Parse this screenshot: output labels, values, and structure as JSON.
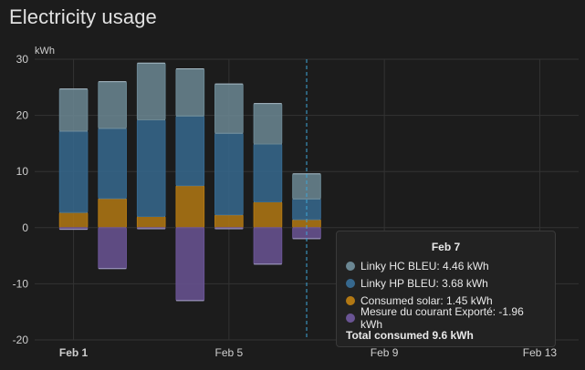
{
  "card": {
    "title": "Electricity usage"
  },
  "chart_data": {
    "type": "bar",
    "stacked": true,
    "unit_label": "kWh",
    "ylim": [
      -20,
      30
    ],
    "yticks": [
      30,
      20,
      10,
      0,
      -10,
      -20
    ],
    "xlim": [
      "Jan 31",
      "Feb 14"
    ],
    "xticks": [
      {
        "date": "Feb 1",
        "bold": true
      },
      {
        "date": "Feb 5",
        "bold": false
      },
      {
        "date": "Feb 9",
        "bold": false
      },
      {
        "date": "Feb 13",
        "bold": false
      }
    ],
    "dates": [
      "Feb 1",
      "Feb 2",
      "Feb 3",
      "Feb 4",
      "Feb 5",
      "Feb 6",
      "Feb 7"
    ],
    "series": [
      {
        "name": "Consumed solar",
        "color": "#b27813",
        "values": [
          2.7,
          5.2,
          2.0,
          7.5,
          2.3,
          4.6,
          1.45
        ]
      },
      {
        "name": "Linky HP BLEU",
        "color": "#36688e",
        "values": [
          14.5,
          12.5,
          17.2,
          12.4,
          14.5,
          10.3,
          3.68
        ]
      },
      {
        "name": "Linky HC BLEU",
        "color": "#6b8793",
        "values": [
          7.5,
          8.3,
          10.1,
          8.4,
          8.8,
          7.2,
          4.46
        ]
      },
      {
        "name": "Mesure du courant Exporté",
        "color": "#6a5494",
        "values": [
          -0.3,
          -7.3,
          -0.2,
          -13.0,
          -0.2,
          -6.5,
          -1.96
        ]
      }
    ],
    "grid": true,
    "hover_date": "Feb 7"
  },
  "tooltip": {
    "title": "Feb 7",
    "rows": [
      {
        "color": "#6b8793",
        "text": "Linky HC BLEU: 4.46 kWh"
      },
      {
        "color": "#36688e",
        "text": "Linky HP BLEU: 3.68 kWh"
      },
      {
        "color": "#b27813",
        "text": "Consumed solar: 1.45 kWh"
      },
      {
        "color": "#6a5494",
        "text": "Mesure du courant Exporté: -1.96 kWh"
      }
    ],
    "total": "Total consumed 9.6 kWh"
  }
}
